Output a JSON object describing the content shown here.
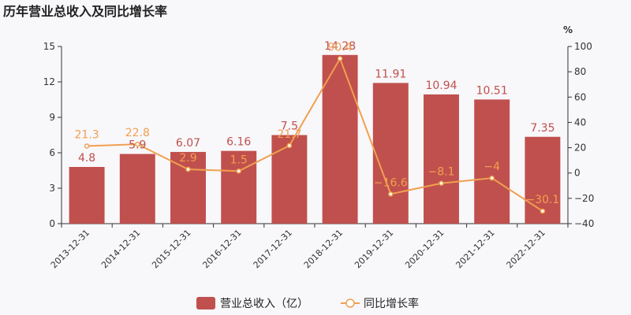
{
  "chart_data": {
    "type": "bar",
    "title": "历年营业总收入及同比增长率",
    "categories": [
      "2013-12-31",
      "2014-12-31",
      "2015-12-31",
      "2016-12-31",
      "2017-12-31",
      "2018-12-31",
      "2019-12-31",
      "2020-12-31",
      "2021-12-31",
      "2022-12-31"
    ],
    "series": [
      {
        "name": "营业总收入（亿）",
        "type": "bar",
        "axis": "left",
        "color": "#c0504d",
        "values": [
          4.8,
          5.9,
          6.07,
          6.16,
          7.5,
          14.28,
          11.91,
          10.94,
          10.51,
          7.35
        ],
        "labels": [
          "4.8",
          "5.9",
          "6.07",
          "6.16",
          "7.5",
          "14.28",
          "11.91",
          "10.94",
          "10.51",
          "7.35"
        ]
      },
      {
        "name": "同比增长率",
        "type": "line",
        "axis": "right",
        "color": "#f0a050",
        "values": [
          21.3,
          22.8,
          2.9,
          1.5,
          21.7,
          90.4,
          -16.6,
          -8.1,
          -4,
          -30.1
        ],
        "labels": [
          "21.3",
          "22.8",
          "2.9",
          "1.5",
          "21.7",
          "90.4",
          "−16.6",
          "−8.1",
          "−4",
          "−30.1"
        ]
      }
    ],
    "y_left": {
      "min": 0,
      "max": 15,
      "ticks": [
        "0",
        "3",
        "6",
        "9",
        "12",
        "15"
      ]
    },
    "y_right": {
      "min": -40,
      "max": 100,
      "unit": "%",
      "ticks": [
        "−40",
        "−20",
        "0",
        "20",
        "40",
        "60",
        "80",
        "100"
      ]
    },
    "legend_position": "bottom-center",
    "grid": false
  }
}
